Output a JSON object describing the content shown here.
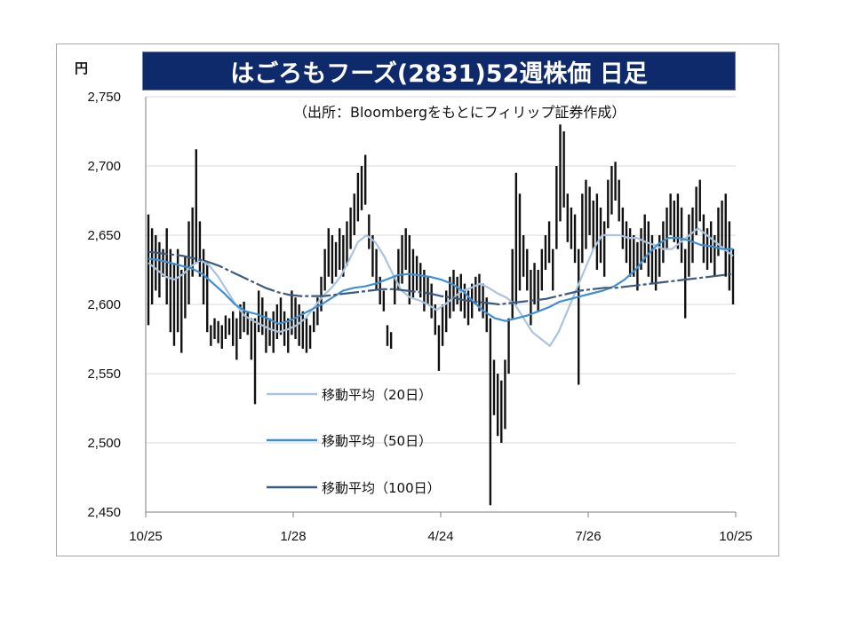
{
  "chart_data": {
    "type": "line",
    "title": "はごろもフーズ(2831)52週株価 日足",
    "source_note": "（出所：Bloombergをもとにフィリップ証券作成）",
    "unit_label": "円",
    "y_ticks": [
      "2,750",
      "2,700",
      "2,650",
      "2,600",
      "2,550",
      "2,500",
      "2,450"
    ],
    "ylim": [
      2450,
      2750
    ],
    "x_ticks": [
      "10/25",
      "1/28",
      "4/24",
      "7/26",
      "10/25"
    ],
    "grid": true,
    "legend_position": "lower-left",
    "price_high_low": [
      [
        2665,
        2585
      ],
      [
        2655,
        2600
      ],
      [
        2650,
        2610
      ],
      [
        2645,
        2605
      ],
      [
        2640,
        2620
      ],
      [
        2655,
        2600
      ],
      [
        2640,
        2580
      ],
      [
        2630,
        2570
      ],
      [
        2640,
        2580
      ],
      [
        2625,
        2565
      ],
      [
        2635,
        2590
      ],
      [
        2660,
        2600
      ],
      [
        2670,
        2620
      ],
      [
        2712,
        2630
      ],
      [
        2660,
        2620
      ],
      [
        2640,
        2600
      ],
      [
        2630,
        2580
      ],
      [
        2585,
        2570
      ],
      [
        2590,
        2575
      ],
      [
        2588,
        2572
      ],
      [
        2585,
        2568
      ],
      [
        2592,
        2575
      ],
      [
        2590,
        2578
      ],
      [
        2595,
        2570
      ],
      [
        2590,
        2560
      ],
      [
        2600,
        2575
      ],
      [
        2602,
        2580
      ],
      [
        2595,
        2578
      ],
      [
        2590,
        2560
      ],
      [
        2590,
        2528
      ],
      [
        2610,
        2580
      ],
      [
        2605,
        2578
      ],
      [
        2595,
        2565
      ],
      [
        2590,
        2570
      ],
      [
        2595,
        2565
      ],
      [
        2600,
        2575
      ],
      [
        2605,
        2578
      ],
      [
        2595,
        2570
      ],
      [
        2590,
        2565
      ],
      [
        2610,
        2578
      ],
      [
        2605,
        2575
      ],
      [
        2600,
        2570
      ],
      [
        2595,
        2568
      ],
      [
        2590,
        2565
      ],
      [
        2585,
        2568
      ],
      [
        2595,
        2580
      ],
      [
        2605,
        2585
      ],
      [
        2620,
        2595
      ],
      [
        2640,
        2610
      ],
      [
        2655,
        2620
      ],
      [
        2650,
        2615
      ],
      [
        2645,
        2620
      ],
      [
        2655,
        2625
      ],
      [
        2650,
        2620
      ],
      [
        2660,
        2628
      ],
      [
        2670,
        2640
      ],
      [
        2680,
        2650
      ],
      [
        2695,
        2660
      ],
      [
        2700,
        2668
      ],
      [
        2708,
        2672
      ],
      [
        2665,
        2640
      ],
      [
        2650,
        2620
      ],
      [
        2640,
        2610
      ],
      [
        2620,
        2600
      ],
      [
        2610,
        2595
      ],
      [
        2585,
        2570
      ],
      [
        2580,
        2568
      ],
      [
        2620,
        2600
      ],
      [
        2640,
        2610
      ],
      [
        2650,
        2615
      ],
      [
        2655,
        2625
      ],
      [
        2650,
        2600
      ],
      [
        2640,
        2605
      ],
      [
        2635,
        2610
      ],
      [
        2630,
        2605
      ],
      [
        2625,
        2595
      ],
      [
        2620,
        2600
      ],
      [
        2615,
        2590
      ],
      [
        2600,
        2578
      ],
      [
        2585,
        2552
      ],
      [
        2600,
        2570
      ],
      [
        2610,
        2580
      ],
      [
        2620,
        2590
      ],
      [
        2625,
        2595
      ],
      [
        2620,
        2600
      ],
      [
        2622,
        2595
      ],
      [
        2615,
        2590
      ],
      [
        2610,
        2585
      ],
      [
        2615,
        2590
      ],
      [
        2620,
        2600
      ],
      [
        2622,
        2595
      ],
      [
        2615,
        2590
      ],
      [
        2605,
        2580
      ],
      [
        2590,
        2455
      ],
      [
        2560,
        2520
      ],
      [
        2550,
        2505
      ],
      [
        2545,
        2500
      ],
      [
        2560,
        2510
      ],
      [
        2590,
        2550
      ],
      [
        2640,
        2590
      ],
      [
        2695,
        2600
      ],
      [
        2680,
        2610
      ],
      [
        2650,
        2620
      ],
      [
        2640,
        2610
      ],
      [
        2625,
        2585
      ],
      [
        2630,
        2600
      ],
      [
        2625,
        2595
      ],
      [
        2640,
        2610
      ],
      [
        2650,
        2625
      ],
      [
        2660,
        2630
      ],
      [
        2640,
        2610
      ],
      [
        2700,
        2640
      ],
      [
        2730,
        2660
      ],
      [
        2725,
        2670
      ],
      [
        2680,
        2645
      ],
      [
        2670,
        2640
      ],
      [
        2665,
        2630
      ],
      [
        2640,
        2542
      ],
      [
        2680,
        2630
      ],
      [
        2690,
        2640
      ],
      [
        2685,
        2650
      ],
      [
        2675,
        2640
      ],
      [
        2680,
        2625
      ],
      [
        2670,
        2630
      ],
      [
        2660,
        2620
      ],
      [
        2690,
        2655
      ],
      [
        2700,
        2665
      ],
      [
        2703,
        2675
      ],
      [
        2690,
        2660
      ],
      [
        2670,
        2640
      ],
      [
        2660,
        2630
      ],
      [
        2655,
        2620
      ],
      [
        2650,
        2620
      ],
      [
        2645,
        2610
      ],
      [
        2655,
        2625
      ],
      [
        2665,
        2630
      ],
      [
        2660,
        2620
      ],
      [
        2650,
        2615
      ],
      [
        2640,
        2610
      ],
      [
        2650,
        2620
      ],
      [
        2660,
        2630
      ],
      [
        2670,
        2640
      ],
      [
        2680,
        2650
      ],
      [
        2675,
        2645
      ],
      [
        2680,
        2640
      ],
      [
        2670,
        2630
      ],
      [
        2640,
        2590
      ],
      [
        2665,
        2620
      ],
      [
        2670,
        2630
      ],
      [
        2685,
        2650
      ],
      [
        2690,
        2660
      ],
      [
        2665,
        2630
      ],
      [
        2655,
        2625
      ],
      [
        2660,
        2630
      ],
      [
        2650,
        2620
      ],
      [
        2670,
        2635
      ],
      [
        2675,
        2640
      ],
      [
        2680,
        2620
      ],
      [
        2660,
        2610
      ],
      [
        2640,
        2600
      ]
    ],
    "series": [
      {
        "name": "移動平均（20日）",
        "color": "#a9c4e0",
        "values": [
          2630,
          2625,
          2620,
          2618,
          2622,
          2628,
          2632,
          2628,
          2620,
          2610,
          2600,
          2592,
          2588,
          2585,
          2582,
          2580,
          2582,
          2585,
          2590,
          2598,
          2606,
          2612,
          2620,
          2632,
          2645,
          2650,
          2645,
          2635,
          2622,
          2610,
          2605,
          2603,
          2600,
          2596,
          2600,
          2605,
          2610,
          2612,
          2615,
          2612,
          2608,
          2605,
          2600,
          2590,
          2580,
          2575,
          2570,
          2580,
          2595,
          2610,
          2625,
          2640,
          2650,
          2650,
          2650,
          2648,
          2648,
          2645,
          2643,
          2640,
          2640,
          2645,
          2650,
          2655,
          2650,
          2645,
          2640,
          2635
        ]
      },
      {
        "name": "移動平均（50日）",
        "color": "#3f8fd3",
        "values": [
          2633,
          2632,
          2630,
          2628,
          2626,
          2622,
          2615,
          2608,
          2600,
          2595,
          2593,
          2590,
          2586,
          2588,
          2592,
          2596,
          2600,
          2605,
          2610,
          2612,
          2613,
          2615,
          2618,
          2621,
          2622,
          2621,
          2620,
          2618,
          2615,
          2610,
          2602,
          2595,
          2590,
          2588,
          2590,
          2592,
          2595,
          2598,
          2602,
          2604,
          2606,
          2608,
          2610,
          2613,
          2618,
          2625,
          2635,
          2643,
          2648,
          2648,
          2646,
          2643,
          2642,
          2640,
          2640
        ]
      },
      {
        "name": "移動平均（100日）",
        "color": "#3c5a80",
        "values": [
          2638,
          2637,
          2636,
          2635,
          2633,
          2631,
          2628,
          2624,
          2620,
          2616,
          2612,
          2609,
          2607,
          2606,
          2606,
          2606,
          2607,
          2608,
          2609,
          2610,
          2611,
          2611,
          2610,
          2609,
          2608,
          2606,
          2605,
          2603,
          2602,
          2601,
          2600,
          2601,
          2602,
          2603,
          2604,
          2606,
          2608,
          2610,
          2611,
          2612,
          2612,
          2613,
          2614,
          2615,
          2616,
          2617,
          2618,
          2619,
          2620,
          2621,
          2622
        ]
      }
    ]
  }
}
